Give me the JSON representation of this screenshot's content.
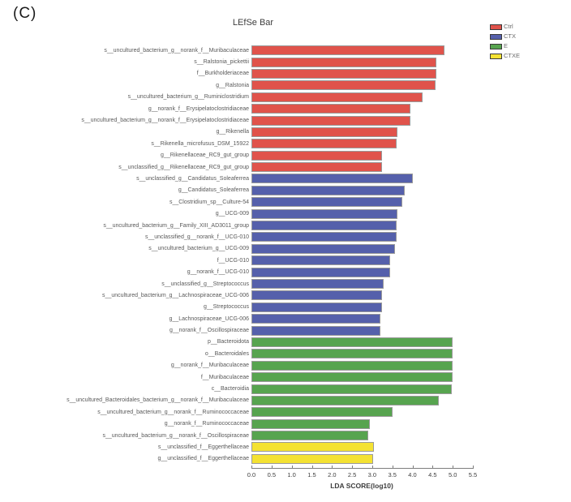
{
  "panel_label": "(C)",
  "chart_data": {
    "type": "bar",
    "orientation": "horizontal",
    "title": "LEfSe Bar",
    "xlabel": "LDA SCORE(log10)",
    "xlim": [
      0,
      5.5
    ],
    "x_ticks": [
      "0.0",
      "0.5",
      "1.0",
      "1.5",
      "2.0",
      "2.5",
      "3.0",
      "3.5",
      "4.0",
      "4.5",
      "5.0",
      "5.5"
    ],
    "grid": false,
    "legend_position": "top-right",
    "groups": [
      {
        "name": "Ctrl",
        "color": "#E0534B",
        "items": [
          {
            "label": "s__uncultured_bacterium_g__norank_f__Muribaculaceae",
            "value": 4.8
          },
          {
            "label": "s__Ralstonia_pickettii",
            "value": 4.6
          },
          {
            "label": "f__Burkholderiaceae",
            "value": 4.6
          },
          {
            "label": "g__Ralstonia",
            "value": 4.58
          },
          {
            "label": "s__uncultured_bacterium_g__Ruminiclostridium",
            "value": 4.25
          },
          {
            "label": "g__norank_f__Erysipelatoclostridiaceae",
            "value": 3.95
          },
          {
            "label": "s__uncultured_bacterium_g__norank_f__Erysipelatoclostridiaceae",
            "value": 3.95
          },
          {
            "label": "g__Rikenella",
            "value": 3.62
          },
          {
            "label": "s__Rikenella_microfusus_DSM_15922",
            "value": 3.6
          },
          {
            "label": "g__Rikenellaceae_RC9_gut_group",
            "value": 3.25
          },
          {
            "label": "s__unclassified_g__Rikenellaceae_RC9_gut_group",
            "value": 3.25
          }
        ]
      },
      {
        "name": "CTX",
        "color": "#5560AB",
        "items": [
          {
            "label": "s__unclassified_g__Candidatus_Soleaferrea",
            "value": 4.0
          },
          {
            "label": "g__Candidatus_Soleaferrea",
            "value": 3.8
          },
          {
            "label": "s__Clostridium_sp__Culture-54",
            "value": 3.75
          },
          {
            "label": "g__UCG-009",
            "value": 3.62
          },
          {
            "label": "s__uncultured_bacterium_g__Family_XIII_AD3011_group",
            "value": 3.6
          },
          {
            "label": "s__unclassified_g__norank_f__UCG-010",
            "value": 3.6
          },
          {
            "label": "s__uncultured_bacterium_g__UCG-009",
            "value": 3.57
          },
          {
            "label": "f__UCG-010",
            "value": 3.45
          },
          {
            "label": "g__norank_f__UCG-010",
            "value": 3.45
          },
          {
            "label": "s__unclassified_g__Streptococcus",
            "value": 3.28
          },
          {
            "label": "s__uncultured_bacterium_g__Lachnospiraceae_UCG-006",
            "value": 3.25
          },
          {
            "label": "g__Streptococcus",
            "value": 3.25
          },
          {
            "label": "g__Lachnospiraceae_UCG-006",
            "value": 3.2
          },
          {
            "label": "g__norank_f__Oscillospiraceae",
            "value": 3.2
          }
        ]
      },
      {
        "name": "E",
        "color": "#57A44F",
        "items": [
          {
            "label": "p__Bacteroidota",
            "value": 5.0
          },
          {
            "label": "o__Bacteroidales",
            "value": 5.0
          },
          {
            "label": "g__norank_f__Muribaculaceae",
            "value": 5.0
          },
          {
            "label": "f__Muribaculaceae",
            "value": 5.0
          },
          {
            "label": "c__Bacteroidia",
            "value": 4.97
          },
          {
            "label": "s__uncultured_Bacteroidales_bacterium_g__norank_f__Muribaculaceae",
            "value": 4.65
          },
          {
            "label": "s__uncultured_bacterium_g__norank_f__Ruminococcaceae",
            "value": 3.5
          },
          {
            "label": "g__norank_f__Ruminococcaceae",
            "value": 2.95
          },
          {
            "label": "s__uncultured_bacterium_g__norank_f__Oscillospiraceae",
            "value": 2.9
          }
        ]
      },
      {
        "name": "CTXE",
        "color": "#F4E232",
        "items": [
          {
            "label": "s__unclassified_f__Eggerthellaceae",
            "value": 3.05
          },
          {
            "label": "g__unclassified_f__Eggerthellaceae",
            "value": 3.02
          }
        ]
      }
    ]
  }
}
